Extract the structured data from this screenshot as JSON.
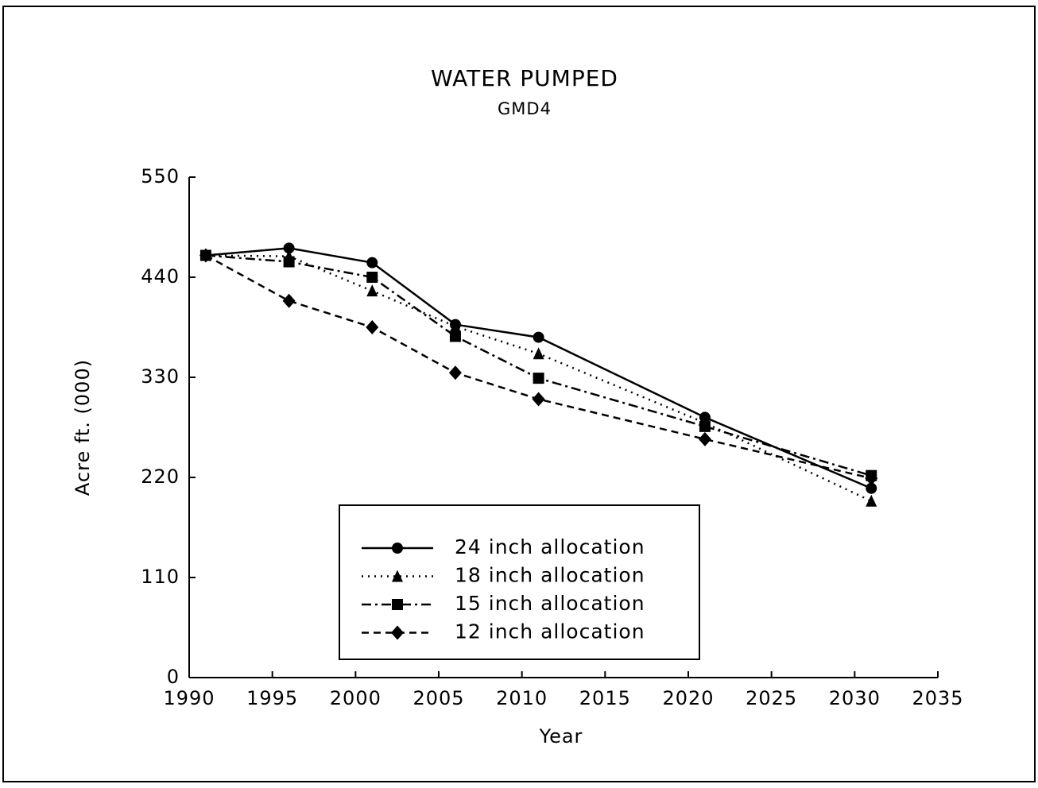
{
  "chart_data": {
    "type": "line",
    "title": "WATER PUMPED",
    "subtitle": "GMD4",
    "x_label": "Year",
    "y_label": "Acre ft. (000)",
    "x": [
      1991,
      1996,
      2001,
      2006,
      2011,
      2021,
      2031
    ],
    "series": [
      {
        "name": "24 inch allocation",
        "color": "#000000",
        "marker": "circle",
        "dash": "solid",
        "values": [
          464,
          472,
          456,
          388,
          374,
          286,
          208
        ]
      },
      {
        "name": "18 inch allocation",
        "color": "#000000",
        "marker": "triangle",
        "dash": "dotted",
        "values": [
          464,
          463,
          425,
          386,
          356,
          280,
          194
        ]
      },
      {
        "name": "15 inch allocation",
        "color": "#000000",
        "marker": "square",
        "dash": "dashdot",
        "values": [
          464,
          457,
          440,
          375,
          329,
          276,
          222
        ]
      },
      {
        "name": "12 inch allocation",
        "color": "#000000",
        "marker": "diamond",
        "dash": "dashed",
        "values": [
          464,
          414,
          385,
          335,
          306,
          262,
          219
        ]
      }
    ],
    "xlim": [
      1990,
      2035
    ],
    "xticks": [
      1990,
      1995,
      2000,
      2005,
      2010,
      2015,
      2020,
      2025,
      2030,
      2035
    ],
    "ylim": [
      0,
      550
    ],
    "yticks": [
      0,
      110,
      220,
      330,
      440,
      550
    ]
  }
}
